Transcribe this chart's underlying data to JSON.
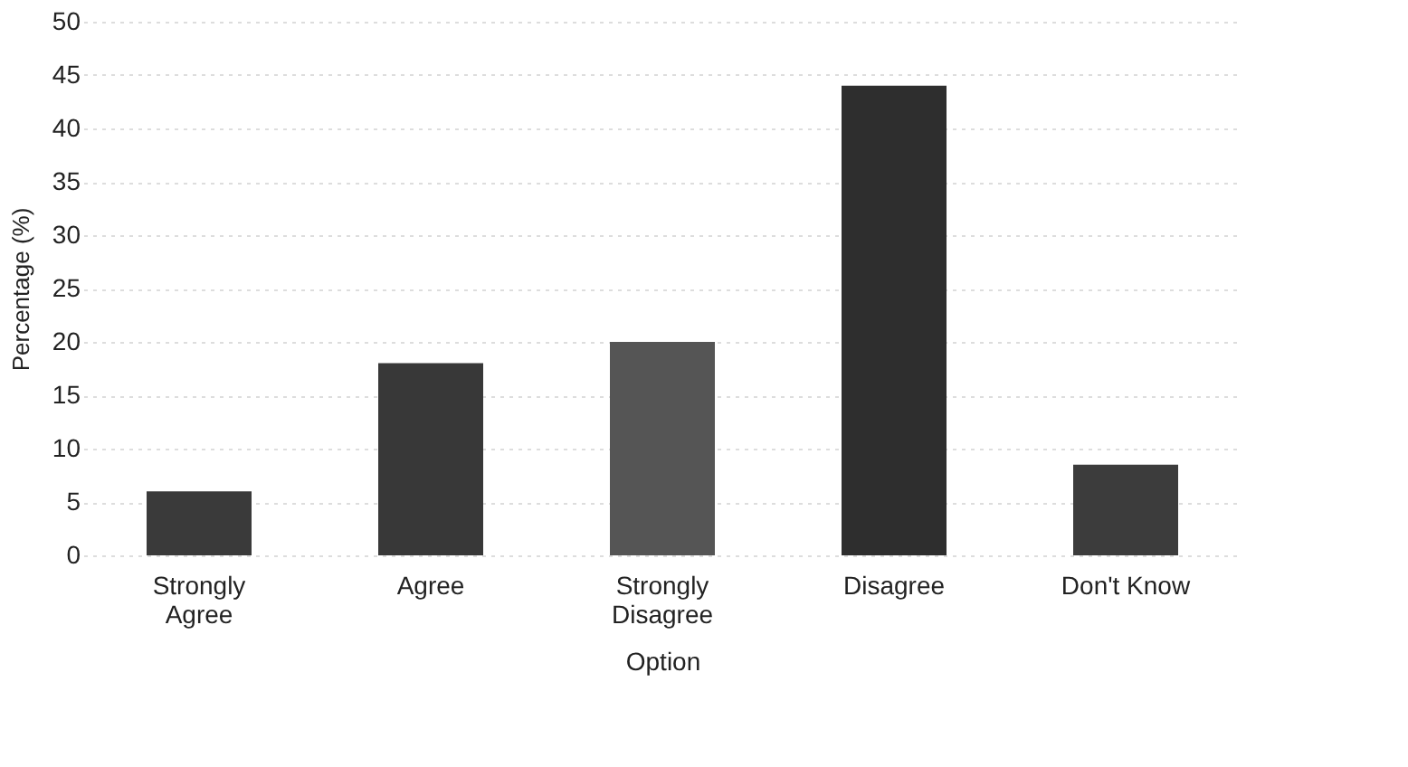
{
  "chart_data": {
    "type": "bar",
    "xlabel": "Option",
    "ylabel": "Percentage (%)",
    "categories": [
      "Strongly Agree",
      "Agree",
      "Strongly Disagree",
      "Disagree",
      "Don't Know"
    ],
    "values": [
      6,
      18,
      20,
      44,
      8.5
    ],
    "colors": [
      "#3a3a3a",
      "#383838",
      "#555555",
      "#2e2e2e",
      "#3c3c3c"
    ],
    "ylim": [
      0,
      50
    ],
    "yticks": [
      0,
      5,
      10,
      15,
      20,
      25,
      30,
      35,
      40,
      45,
      50
    ],
    "grid": "y"
  }
}
